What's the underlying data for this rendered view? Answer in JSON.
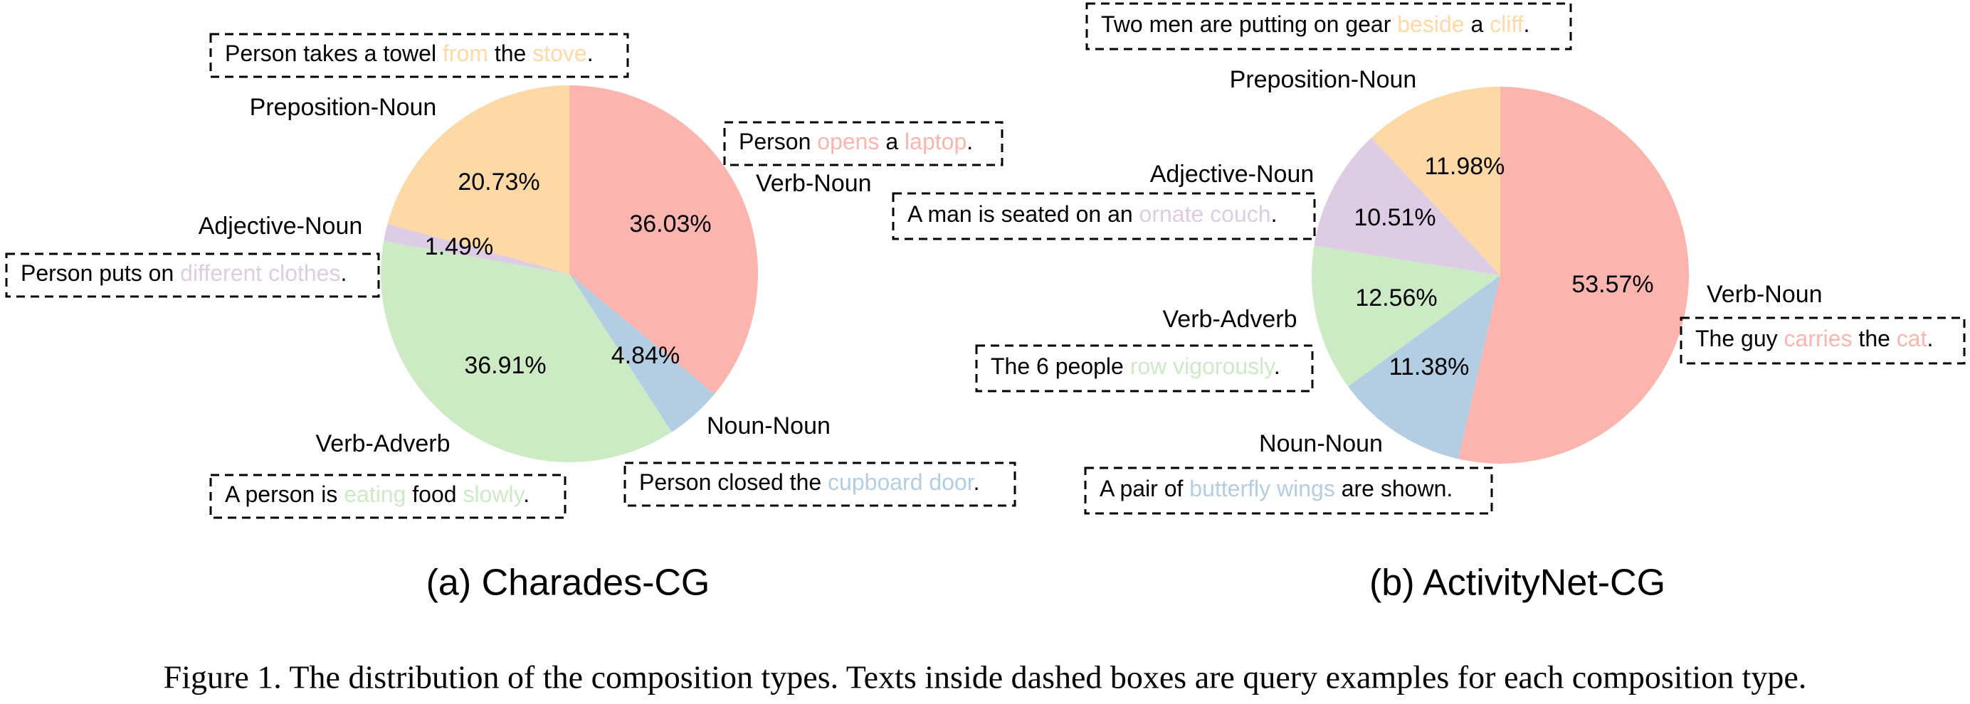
{
  "colors": {
    "verb_noun": "#fbb4ae",
    "noun_noun": "#b3cde3",
    "verb_adverb": "#ccebc5",
    "adjective_noun": "#decbe4",
    "preposition_noun": "#fed9a6",
    "text": "#000000",
    "box_border": "#000000"
  },
  "chart_data": [
    {
      "type": "pie",
      "title": "(a) Charades-CG",
      "slices": [
        {
          "label": "Verb-Noun",
          "value": 36.03,
          "value_label": "36.03%",
          "color": "#fbb4ae",
          "example": [
            {
              "t": "Person "
            },
            {
              "t": "opens",
              "h": true
            },
            {
              "t": " a "
            },
            {
              "t": "laptop",
              "h": true
            },
            {
              "t": "."
            }
          ]
        },
        {
          "label": "Noun-Noun",
          "value": 4.84,
          "value_label": "4.84%",
          "color": "#b3cde3",
          "example": [
            {
              "t": "Person closed the "
            },
            {
              "t": "cupboard door",
              "h": true
            },
            {
              "t": "."
            }
          ]
        },
        {
          "label": "Verb-Adverb",
          "value": 36.91,
          "value_label": "36.91%",
          "color": "#ccebc5",
          "example": [
            {
              "t": "A person is "
            },
            {
              "t": "eating",
              "h": true
            },
            {
              "t": " food "
            },
            {
              "t": "slowly",
              "h": true
            },
            {
              "t": "."
            }
          ]
        },
        {
          "label": "Adjective-Noun",
          "value": 1.49,
          "value_label": "1.49%",
          "color": "#decbe4",
          "example": [
            {
              "t": "Person puts on "
            },
            {
              "t": "different clothes",
              "h": true
            },
            {
              "t": "."
            }
          ]
        },
        {
          "label": "Preposition-Noun",
          "value": 20.73,
          "value_label": "20.73%",
          "color": "#fed9a6",
          "example": [
            {
              "t": "Person takes a towel "
            },
            {
              "t": "from",
              "h": true
            },
            {
              "t": " the "
            },
            {
              "t": "stove",
              "h": true
            },
            {
              "t": "."
            }
          ]
        }
      ]
    },
    {
      "type": "pie",
      "title": "(b) ActivityNet-CG",
      "slices": [
        {
          "label": "Verb-Noun",
          "value": 53.57,
          "value_label": "53.57%",
          "color": "#fbb4ae",
          "example": [
            {
              "t": "The guy "
            },
            {
              "t": "carries",
              "h": true
            },
            {
              "t": " the "
            },
            {
              "t": "cat",
              "h": true
            },
            {
              "t": "."
            }
          ]
        },
        {
          "label": "Noun-Noun",
          "value": 11.38,
          "value_label": "11.38%",
          "color": "#b3cde3",
          "example": [
            {
              "t": "A pair of "
            },
            {
              "t": "butterfly wings",
              "h": true
            },
            {
              "t": " are shown."
            }
          ]
        },
        {
          "label": "Verb-Adverb",
          "value": 12.56,
          "value_label": "12.56%",
          "color": "#ccebc5",
          "example": [
            {
              "t": "The 6 people "
            },
            {
              "t": "row vigorously",
              "h": true
            },
            {
              "t": "."
            }
          ]
        },
        {
          "label": "Adjective-Noun",
          "value": 10.51,
          "value_label": "10.51%",
          "color": "#decbe4",
          "example": [
            {
              "t": "A man is seated on an "
            },
            {
              "t": "ornate couch",
              "h": true
            },
            {
              "t": "."
            }
          ]
        },
        {
          "label": "Preposition-Noun",
          "value": 11.98,
          "value_label": "11.98%",
          "color": "#fed9a6",
          "example": [
            {
              "t": "Two men are putting on gear "
            },
            {
              "t": "beside",
              "h": true
            },
            {
              "t": " a "
            },
            {
              "t": "cliff",
              "h": true
            },
            {
              "t": "."
            }
          ]
        }
      ]
    }
  ],
  "caption": "Figure 1. The distribution of the composition types. Texts inside dashed boxes are query examples for each composition type."
}
